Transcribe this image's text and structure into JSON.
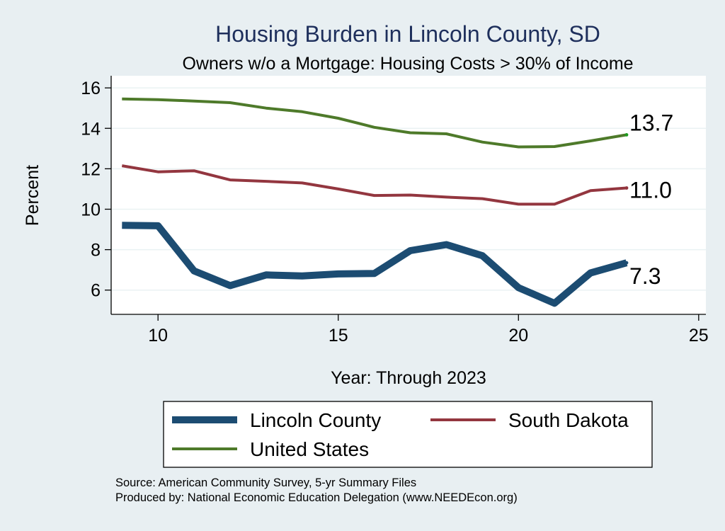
{
  "chart_data": {
    "type": "line",
    "title": "Housing Burden in Lincoln County, SD",
    "subtitle": "Owners w/o a Mortgage: Housing Costs > 30% of Income",
    "xlabel": "Year: Through 2023",
    "ylabel": "Percent",
    "xlim": [
      8.7,
      25.2
    ],
    "ylim": [
      4.8,
      16.6
    ],
    "xticks": [
      10,
      15,
      20,
      25
    ],
    "yticks": [
      6,
      8,
      10,
      12,
      14,
      16
    ],
    "grid": true,
    "legend_position": "bottom",
    "x": [
      9,
      10,
      11,
      12,
      13,
      14,
      15,
      16,
      17,
      18,
      19,
      20,
      21,
      22,
      23
    ],
    "series": [
      {
        "name": "Lincoln County",
        "color": "#1c4c72",
        "values": [
          9.2,
          9.18,
          6.95,
          6.22,
          6.75,
          6.7,
          6.8,
          6.82,
          7.95,
          8.25,
          7.7,
          6.12,
          5.35,
          6.85,
          7.35
        ],
        "end_label": "7.3"
      },
      {
        "name": "South Dakota",
        "color": "#93363f",
        "values": [
          12.15,
          11.85,
          11.9,
          11.45,
          11.38,
          11.3,
          11.0,
          10.68,
          10.7,
          10.6,
          10.52,
          10.25,
          10.25,
          10.92,
          11.05
        ],
        "end_label": "11.0"
      },
      {
        "name": "United States",
        "color": "#4e7a2a",
        "values": [
          15.45,
          15.42,
          15.35,
          15.27,
          15.0,
          14.82,
          14.5,
          14.05,
          13.78,
          13.73,
          13.32,
          13.08,
          13.1,
          13.38,
          13.68
        ],
        "end_label": "13.7"
      }
    ]
  },
  "source_line": "Source: American Community Survey, 5-yr Summary Files",
  "produced_line": "Produced by: National Economic Education Delegation (www.NEEDEcon.org)"
}
